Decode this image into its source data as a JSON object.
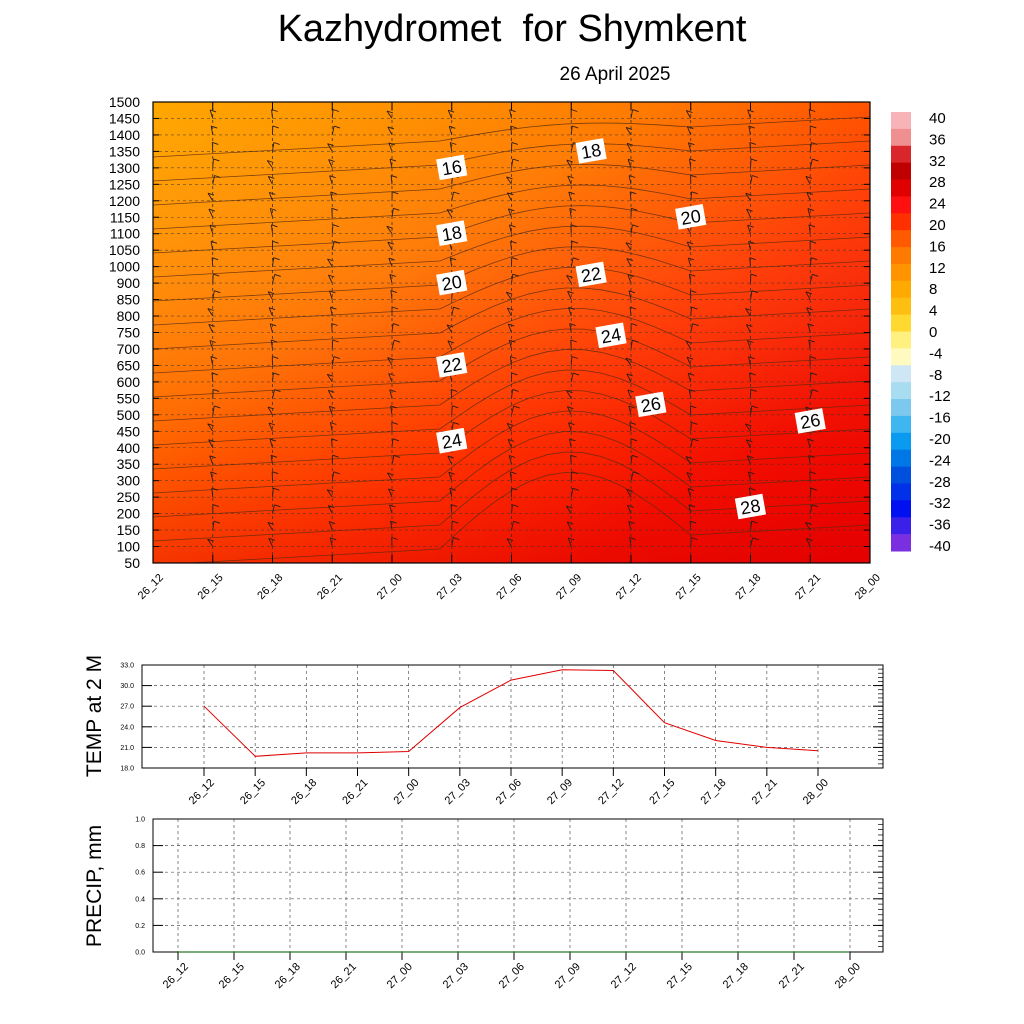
{
  "header": {
    "title": "Kazhydromet  for Shymkent",
    "subtitle": "26 April 2025"
  },
  "chart_data": [
    {
      "type": "heatmap",
      "name": "temperature-cross-section",
      "x_labels": [
        "26_12",
        "26_15",
        "26_18",
        "26_21",
        "27_00",
        "27_03",
        "27_06",
        "27_09",
        "27_12",
        "27_15",
        "27_18",
        "27_21",
        "28_00"
      ],
      "y_labels": [
        "1500",
        "1450",
        "1400",
        "1350",
        "1300",
        "1250",
        "1200",
        "1150",
        "1100",
        "1050",
        "1000",
        "900",
        "850",
        "800",
        "750",
        "700",
        "650",
        "600",
        "550",
        "500",
        "450",
        "400",
        "350",
        "300",
        "250",
        "200",
        "150",
        "100",
        "50"
      ],
      "colorbar": {
        "labels": [
          "40",
          "36",
          "32",
          "28",
          "24",
          "20",
          "16",
          "12",
          "8",
          "4",
          "0",
          "-4",
          "-8",
          "-12",
          "-16",
          "-20",
          "-24",
          "-28",
          "-32",
          "-36",
          "-40"
        ],
        "colors_top_to_bottom": [
          "#f7b3b8",
          "#ef8f8f",
          "#d8262a",
          "#c00000",
          "#e00000",
          "#ff1010",
          "#ff3000",
          "#ff5a00",
          "#ff7a00",
          "#ff9400",
          "#ffaa00",
          "#ffbf10",
          "#ffd830",
          "#fff080",
          "#fffbc0",
          "#cfe6f5",
          "#a8dcf0",
          "#7cc8ee",
          "#40b6f0",
          "#0a9af0",
          "#0077e6",
          "#0050e0",
          "#0030e8",
          "#0010f0",
          "#3a20e8",
          "#7a30e0"
        ]
      },
      "contour_labels": [
        {
          "text": "16",
          "x": "27_03",
          "y": 1300
        },
        {
          "text": "18",
          "x": "27_03",
          "y": 1100
        },
        {
          "text": "20",
          "x": "27_03",
          "y": 900
        },
        {
          "text": "22",
          "x": "27_03",
          "y": 650
        },
        {
          "text": "24",
          "x": "27_03",
          "y": 420
        },
        {
          "text": "18",
          "x": "27_10",
          "y": 1350
        },
        {
          "text": "22",
          "x": "27_10",
          "y": 950
        },
        {
          "text": "24",
          "x": "27_11",
          "y": 740
        },
        {
          "text": "20",
          "x": "27_15",
          "y": 1150
        },
        {
          "text": "26",
          "x": "27_13",
          "y": 530
        },
        {
          "text": "28",
          "x": "27_18",
          "y": 220
        },
        {
          "text": "26",
          "x": "27_21",
          "y": 480
        }
      ]
    },
    {
      "type": "line",
      "name": "temp-2m",
      "ylabel": "TEMP at 2 M",
      "x": [
        "26_12",
        "26_15",
        "26_18",
        "26_21",
        "27_00",
        "27_03",
        "27_06",
        "27_09",
        "27_12",
        "27_15",
        "27_18",
        "27_21",
        "28_00"
      ],
      "values": [
        27.0,
        19.7,
        20.2,
        20.2,
        20.4,
        26.8,
        30.8,
        32.3,
        32.2,
        24.6,
        22.0,
        21.0,
        20.5
      ],
      "yticks": [
        "33.0",
        "30.0",
        "27.0",
        "24.0",
        "21.0",
        "18.0"
      ],
      "ylim": [
        18,
        33
      ],
      "line_color": "#e00000"
    },
    {
      "type": "line",
      "name": "precip",
      "ylabel": "PRECIP, mm",
      "x": [
        "26_12",
        "26_15",
        "26_18",
        "26_21",
        "27_00",
        "27_03",
        "27_06",
        "27_09",
        "27_12",
        "27_15",
        "27_18",
        "27_21",
        "28_00"
      ],
      "values": [
        0,
        0,
        0,
        0,
        0,
        0,
        0,
        0,
        0,
        0,
        0,
        0,
        0
      ],
      "yticks": [
        "1.0",
        "0.8",
        "0.6",
        "0.4",
        "0.2",
        "0.0"
      ],
      "ylim": [
        0,
        1
      ],
      "line_color": "#2a7a2a"
    }
  ]
}
